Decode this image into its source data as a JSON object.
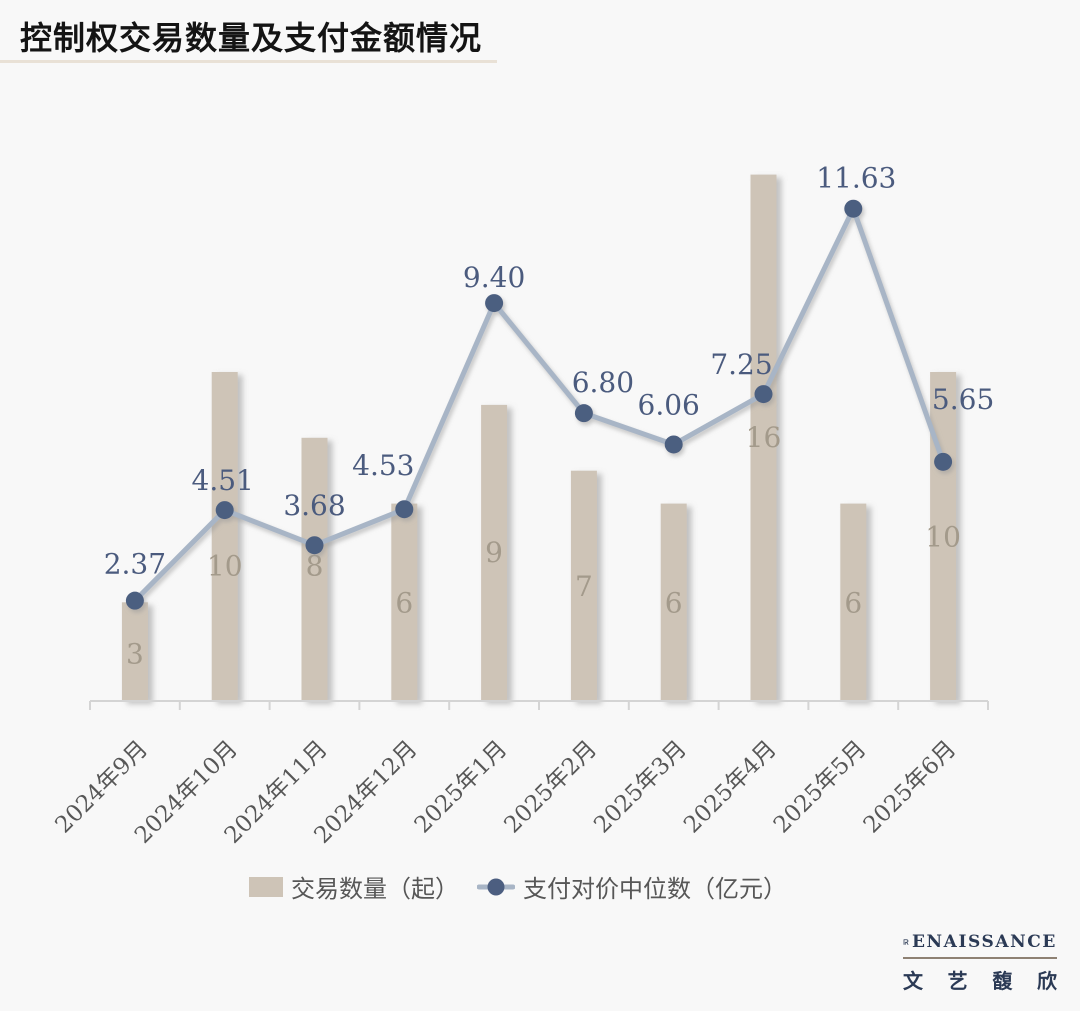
{
  "header": {
    "title": "控制权交易数量及支付金额情况"
  },
  "chart_data": {
    "type": "bar+line combo",
    "title": "控制权交易数量及支付金额情况",
    "categories": [
      "2024年9月",
      "2024年10月",
      "2024年11月",
      "2024年12月",
      "2025年1月",
      "2025年2月",
      "2025年3月",
      "2025年4月",
      "2025年5月",
      "2025年6月"
    ],
    "series": [
      {
        "name": "交易数量（起）",
        "type": "bar",
        "values": [
          3,
          10,
          8,
          6,
          9,
          7,
          6,
          16,
          6,
          10
        ]
      },
      {
        "name": "支付对价中位数（亿元）",
        "type": "line",
        "values": [
          2.37,
          4.51,
          3.68,
          4.53,
          9.4,
          6.8,
          6.06,
          7.25,
          11.63,
          5.65
        ]
      }
    ],
    "legend_position": "bottom",
    "grid": false,
    "y_axis_visible": false,
    "colors": {
      "background": "#f8f8f8",
      "bar": "#cec4b7",
      "bar_label": "#a39a8b",
      "line": "#a8b5c6",
      "marker": "#4c5e80",
      "line_label": "#4b5b7e",
      "axis": "#d4d4d4",
      "tick_label": "#575757",
      "title": "#141414",
      "title_underline": "#e9e1d6"
    }
  },
  "legend": {
    "items": [
      {
        "label": "交易数量（起）",
        "marker": "bar-swatch"
      },
      {
        "label": "支付对价中位数（亿元）",
        "marker": "line-dot"
      }
    ]
  },
  "logo": {
    "brand": "RENAISSANCE",
    "cjk": "文艺馥欣",
    "brand_color": "#2b3a55",
    "divider_color": "#8e8173"
  }
}
